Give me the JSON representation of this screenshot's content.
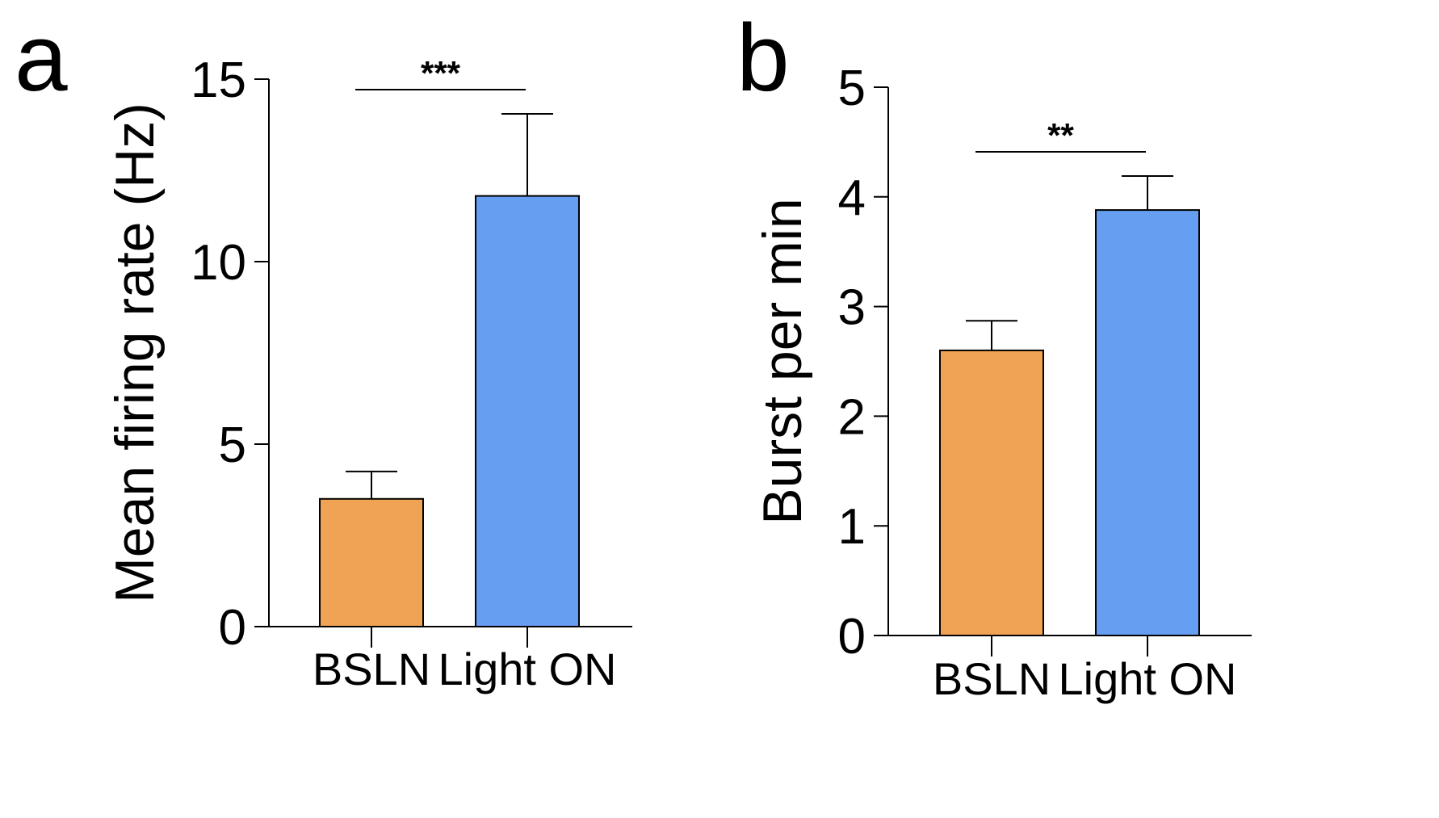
{
  "chart_data": [
    {
      "type": "bar",
      "panel_label": "a",
      "categories": [
        "BSLN",
        "Light ON"
      ],
      "values": [
        3.5,
        11.8
      ],
      "errors": [
        0.75,
        2.25
      ],
      "colors": [
        "#f0a354",
        "#669ff2"
      ],
      "ylabel": "Mean firing rate (Hz)",
      "xlabel": "",
      "ylim": [
        0,
        15
      ],
      "yticks": [
        0,
        5,
        10,
        15
      ],
      "significance": {
        "from": 0,
        "to": 1,
        "label": "***"
      }
    },
    {
      "type": "bar",
      "panel_label": "b",
      "categories": [
        "BSLN",
        "Light ON"
      ],
      "values": [
        2.6,
        3.88
      ],
      "errors": [
        0.27,
        0.31
      ],
      "colors": [
        "#f0a354",
        "#669ff2"
      ],
      "ylabel": "Burst per min",
      "xlabel": "",
      "ylim": [
        0,
        5
      ],
      "yticks": [
        0,
        1,
        2,
        3,
        4,
        5
      ],
      "significance": {
        "from": 0,
        "to": 1,
        "label": "**"
      }
    }
  ]
}
